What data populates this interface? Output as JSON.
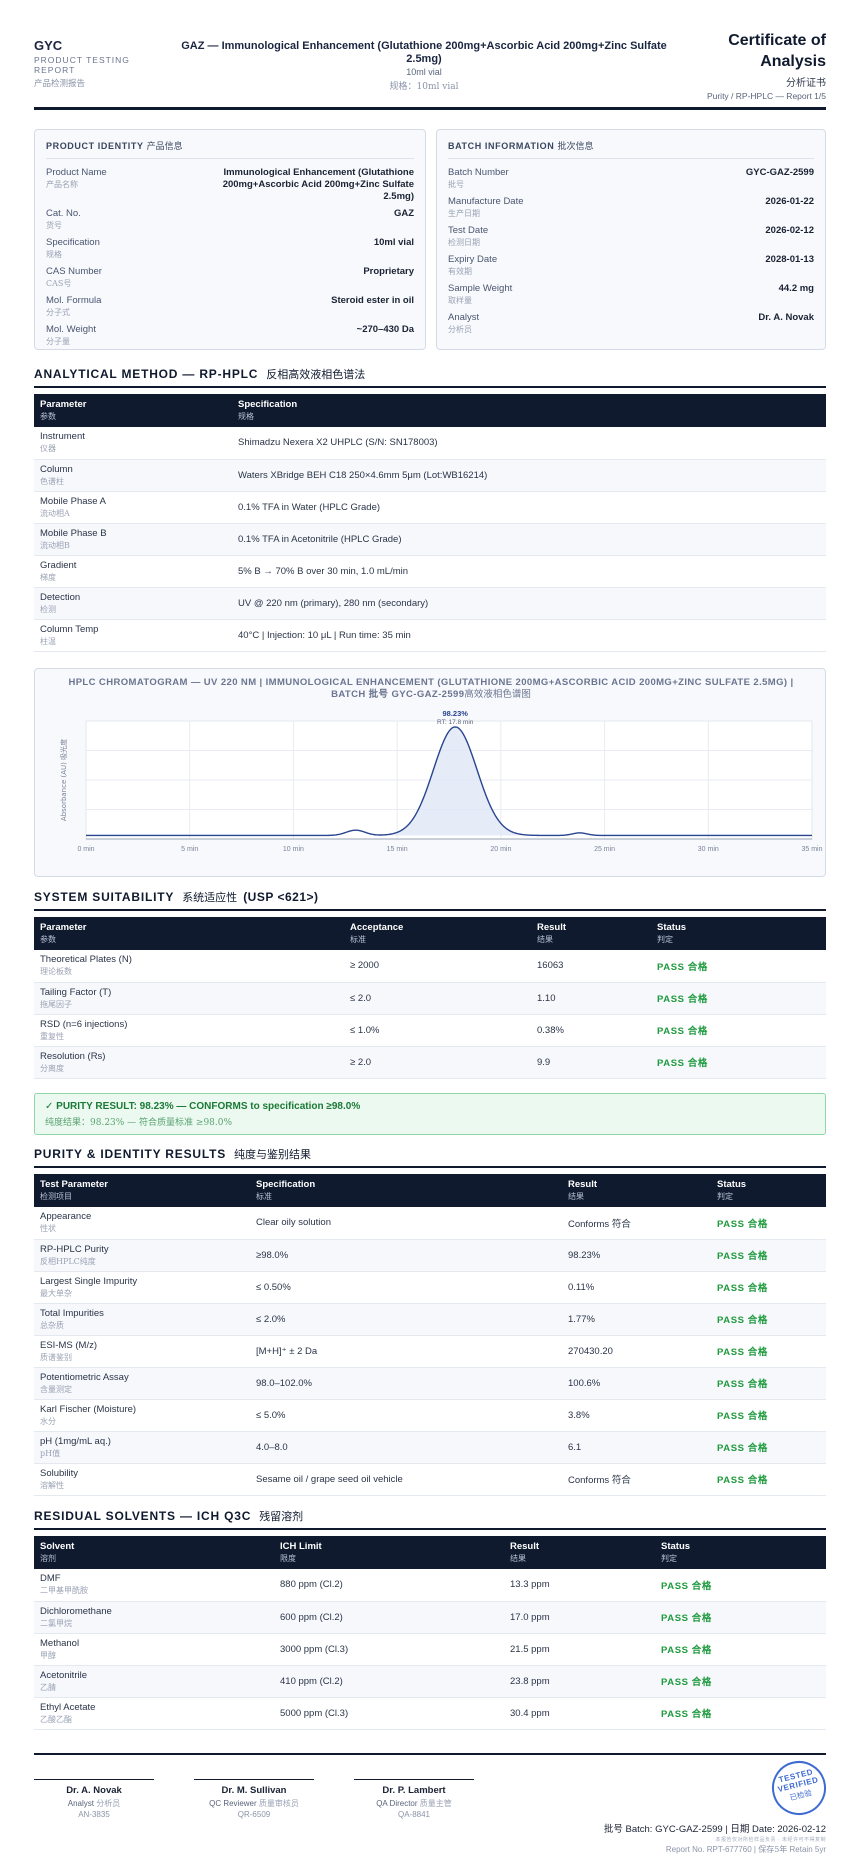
{
  "header": {
    "brand": "GYC",
    "brand_sub": "PRODUCT TESTING REPORT",
    "brand_cn": "产品检测报告",
    "product_title": "GAZ — Immunological Enhancement (Glutathione 200mg+Ascorbic Acid 200mg+Zinc Sulfate 2.5mg)",
    "spec": "10ml vial",
    "spec_cn": "规格：10ml vial",
    "doc_title": "Certificate of Analysis",
    "doc_title_cn": "分析证书",
    "doc_sub": "Purity / RP-HPLC — Report 1/5"
  },
  "product_identity": {
    "title": "PRODUCT IDENTITY",
    "title_cn": "产品信息",
    "rows": [
      {
        "label": "Product Name",
        "label_cn": "产品名称",
        "value": "Immunological Enhancement (Glutathione 200mg+Ascorbic Acid 200mg+Zinc Sulfate 2.5mg)"
      },
      {
        "label": "Cat. No.",
        "label_cn": "货号",
        "value": "GAZ"
      },
      {
        "label": "Specification",
        "label_cn": "规格",
        "value": "10ml vial"
      },
      {
        "label": "CAS Number",
        "label_cn": "CAS号",
        "value": "Proprietary"
      },
      {
        "label": "Mol. Formula",
        "label_cn": "分子式",
        "value": "Steroid ester in oil"
      },
      {
        "label": "Mol. Weight",
        "label_cn": "分子量",
        "value": "~270–430 Da"
      }
    ]
  },
  "batch_info": {
    "title": "BATCH INFORMATION",
    "title_cn": "批次信息",
    "rows": [
      {
        "label": "Batch Number",
        "label_cn": "批号",
        "value": "GYC-GAZ-2599"
      },
      {
        "label": "Manufacture Date",
        "label_cn": "生产日期",
        "value": "2026-01-22"
      },
      {
        "label": "Test Date",
        "label_cn": "检测日期",
        "value": "2026-02-12"
      },
      {
        "label": "Expiry Date",
        "label_cn": "有效期",
        "value": "2028-01-13"
      },
      {
        "label": "Sample Weight",
        "label_cn": "取样量",
        "value": "44.2 mg"
      },
      {
        "label": "Analyst",
        "label_cn": "分析员",
        "value": "Dr. A. Novak"
      }
    ]
  },
  "method": {
    "title": "ANALYTICAL METHOD — RP-HPLC",
    "title_cn": "反相高效液相色谱法",
    "headers": [
      {
        "en": "Parameter",
        "cn": "参数"
      },
      {
        "en": "Specification",
        "cn": "规格"
      }
    ],
    "rows": [
      {
        "param": "Instrument",
        "param_cn": "仪器",
        "spec": "Shimadzu Nexera X2 UHPLC (S/N: SN178003)"
      },
      {
        "param": "Column",
        "param_cn": "色谱柱",
        "spec": "Waters XBridge BEH C18 250×4.6mm 5μm (Lot:WB16214)"
      },
      {
        "param": "Mobile Phase A",
        "param_cn": "流动相A",
        "spec": "0.1% TFA in Water (HPLC Grade)"
      },
      {
        "param": "Mobile Phase B",
        "param_cn": "流动相B",
        "spec": "0.1% TFA in Acetonitrile (HPLC Grade)"
      },
      {
        "param": "Gradient",
        "param_cn": "梯度",
        "spec": "5% B → 70% B over 30 min, 1.0 mL/min"
      },
      {
        "param": "Detection",
        "param_cn": "检测",
        "spec": "UV @ 220 nm (primary), 280 nm (secondary)"
      },
      {
        "param": "Column Temp",
        "param_cn": "柱温",
        "spec": "40°C | Injection: 10 μL | Run time: 35 min"
      }
    ]
  },
  "chart_data": {
    "type": "line",
    "title": "HPLC CHROMATOGRAM — UV 220 NM | IMMUNOLOGICAL ENHANCEMENT (GLUTATHIONE 200MG+ASCORBIC ACID 200MG+ZINC SULFATE 2.5MG) | BATCH 批号 GYC-GAZ-2599",
    "title_cn": "高效液相色谱图",
    "ylabel": "Absorbance (AU) 吸光度",
    "xlabel": "",
    "xlim": [
      0,
      35
    ],
    "ylim": [
      0,
      1
    ],
    "x_ticks": [
      "0 min",
      "5 min",
      "10 min",
      "15 min",
      "20 min",
      "25 min",
      "30 min",
      "35 min"
    ],
    "peaks": [
      {
        "rt": 13.0,
        "height": 0.045,
        "width": 0.45
      },
      {
        "rt": 17.8,
        "height": 0.92,
        "width": 1.05
      },
      {
        "rt": 23.8,
        "height": 0.022,
        "width": 0.35
      }
    ],
    "baseline": 0.03,
    "peak_label": "98.23%",
    "peak_rt_label": "RT: 17.8 min",
    "grid": true
  },
  "suitability": {
    "title": "SYSTEM SUITABILITY",
    "title_cn": "系统适应性",
    "title_suffix": "(USP <621>)",
    "headers": [
      {
        "en": "Parameter",
        "cn": "参数"
      },
      {
        "en": "Acceptance",
        "cn": "标准"
      },
      {
        "en": "Result",
        "cn": "结果"
      },
      {
        "en": "Status",
        "cn": "判定"
      }
    ],
    "rows": [
      {
        "param": "Theoretical Plates (N)",
        "param_cn": "理论板数",
        "acceptance": "≥ 2000",
        "result": "16063",
        "status": "PASS 合格"
      },
      {
        "param": "Tailing Factor (T)",
        "param_cn": "拖尾因子",
        "acceptance": "≤ 2.0",
        "result": "1.10",
        "status": "PASS 合格"
      },
      {
        "param": "RSD (n=6 injections)",
        "param_cn": "重复性",
        "acceptance": "≤ 1.0%",
        "result": "0.38%",
        "status": "PASS 合格"
      },
      {
        "param": "Resolution (Rs)",
        "param_cn": "分离度",
        "acceptance": "≥ 2.0",
        "result": "9.9",
        "status": "PASS 合格"
      }
    ]
  },
  "purity_banner": {
    "main": "✓ PURITY RESULT: 98.23% — CONFORMS to specification ≥98.0%",
    "cn": "纯度结果：98.23% — 符合质量标准 ≥98.0%"
  },
  "results": {
    "title": "PURITY & IDENTITY RESULTS",
    "title_cn": "纯度与鉴别结果",
    "headers": [
      {
        "en": "Test Parameter",
        "cn": "检测项目"
      },
      {
        "en": "Specification",
        "cn": "标准"
      },
      {
        "en": "Result",
        "cn": "结果"
      },
      {
        "en": "Status",
        "cn": "判定"
      }
    ],
    "rows": [
      {
        "param": "Appearance",
        "param_cn": "性状",
        "spec": "Clear oily solution",
        "result": "Conforms 符合",
        "status": "PASS 合格"
      },
      {
        "param": "RP-HPLC Purity",
        "param_cn": "反相HPLC纯度",
        "spec": "≥98.0%",
        "result": "98.23%",
        "status": "PASS 合格"
      },
      {
        "param": "Largest Single Impurity",
        "param_cn": "最大单杂",
        "spec": "≤ 0.50%",
        "result": "0.11%",
        "status": "PASS 合格"
      },
      {
        "param": "Total Impurities",
        "param_cn": "总杂质",
        "spec": "≤ 2.0%",
        "result": "1.77%",
        "status": "PASS 合格"
      },
      {
        "param": "ESI-MS (M/z)",
        "param_cn": "质谱鉴别",
        "spec": "[M+H]⁺ ± 2 Da",
        "result": "270430.20",
        "status": "PASS 合格"
      },
      {
        "param": "Potentiometric Assay",
        "param_cn": "含量测定",
        "spec": "98.0–102.0%",
        "result": "100.6%",
        "status": "PASS 合格"
      },
      {
        "param": "Karl Fischer (Moisture)",
        "param_cn": "水分",
        "spec": "≤ 5.0%",
        "result": "3.8%",
        "status": "PASS 合格"
      },
      {
        "param": "pH (1mg/mL aq.)",
        "param_cn": "pH值",
        "spec": "4.0–8.0",
        "result": "6.1",
        "status": "PASS 合格"
      },
      {
        "param": "Solubility",
        "param_cn": "溶解性",
        "spec": "Sesame oil / grape seed oil vehicle",
        "result": "Conforms 符合",
        "status": "PASS 合格"
      }
    ]
  },
  "solvents": {
    "title": "RESIDUAL SOLVENTS — ICH Q3C",
    "title_cn": "残留溶剂",
    "headers": [
      {
        "en": "Solvent",
        "cn": "溶剂"
      },
      {
        "en": "ICH Limit",
        "cn": "限度"
      },
      {
        "en": "Result",
        "cn": "结果"
      },
      {
        "en": "Status",
        "cn": "判定"
      }
    ],
    "rows": [
      {
        "param": "DMF",
        "param_cn": "二甲基甲酰胺",
        "limit": "880 ppm (Cl.2)",
        "result": "13.3 ppm",
        "status": "PASS 合格"
      },
      {
        "param": "Dichloromethane",
        "param_cn": "二氯甲烷",
        "limit": "600 ppm (Cl.2)",
        "result": "17.0 ppm",
        "status": "PASS 合格"
      },
      {
        "param": "Methanol",
        "param_cn": "甲醇",
        "limit": "3000 ppm (Cl.3)",
        "result": "21.5 ppm",
        "status": "PASS 合格"
      },
      {
        "param": "Acetonitrile",
        "param_cn": "乙腈",
        "limit": "410 ppm (Cl.2)",
        "result": "23.8 ppm",
        "status": "PASS 合格"
      },
      {
        "param": "Ethyl Acetate",
        "param_cn": "乙酸乙酯",
        "limit": "5000 ppm (Cl.3)",
        "result": "30.4 ppm",
        "status": "PASS 合格"
      }
    ]
  },
  "signatures": [
    {
      "name": "Dr. A. Novak",
      "role": "Analyst",
      "role_cn": "分析员",
      "id": "AN-3835"
    },
    {
      "name": "Dr. M. Sullivan",
      "role": "QC Reviewer",
      "role_cn": "质量审核员",
      "id": "QR-6509"
    },
    {
      "name": "Dr. P. Lambert",
      "role": "QA Director",
      "role_cn": "质量主管",
      "id": "QA-8841"
    }
  ],
  "stamp": {
    "line1": "TESTED",
    "line2": "VERIFIED",
    "line3": "已检验"
  },
  "footer": {
    "batch_line_cn": "批号",
    "batch_line": "Batch: GYC-GAZ-2599 | 日期 Date: 2026-02-12",
    "micro": "本报告仅对所检样品负责 · 未经许可不得复制",
    "report_no": "Report No. RPT-677760 |",
    "retain_cn": "保存5年",
    "retain": "Retain 5yr"
  },
  "colors": {
    "navy": "#0f1a2e",
    "pass_green": "#1f9a3e",
    "line_blue": "#2a4590",
    "stamp_blue": "#3d6bd1"
  }
}
